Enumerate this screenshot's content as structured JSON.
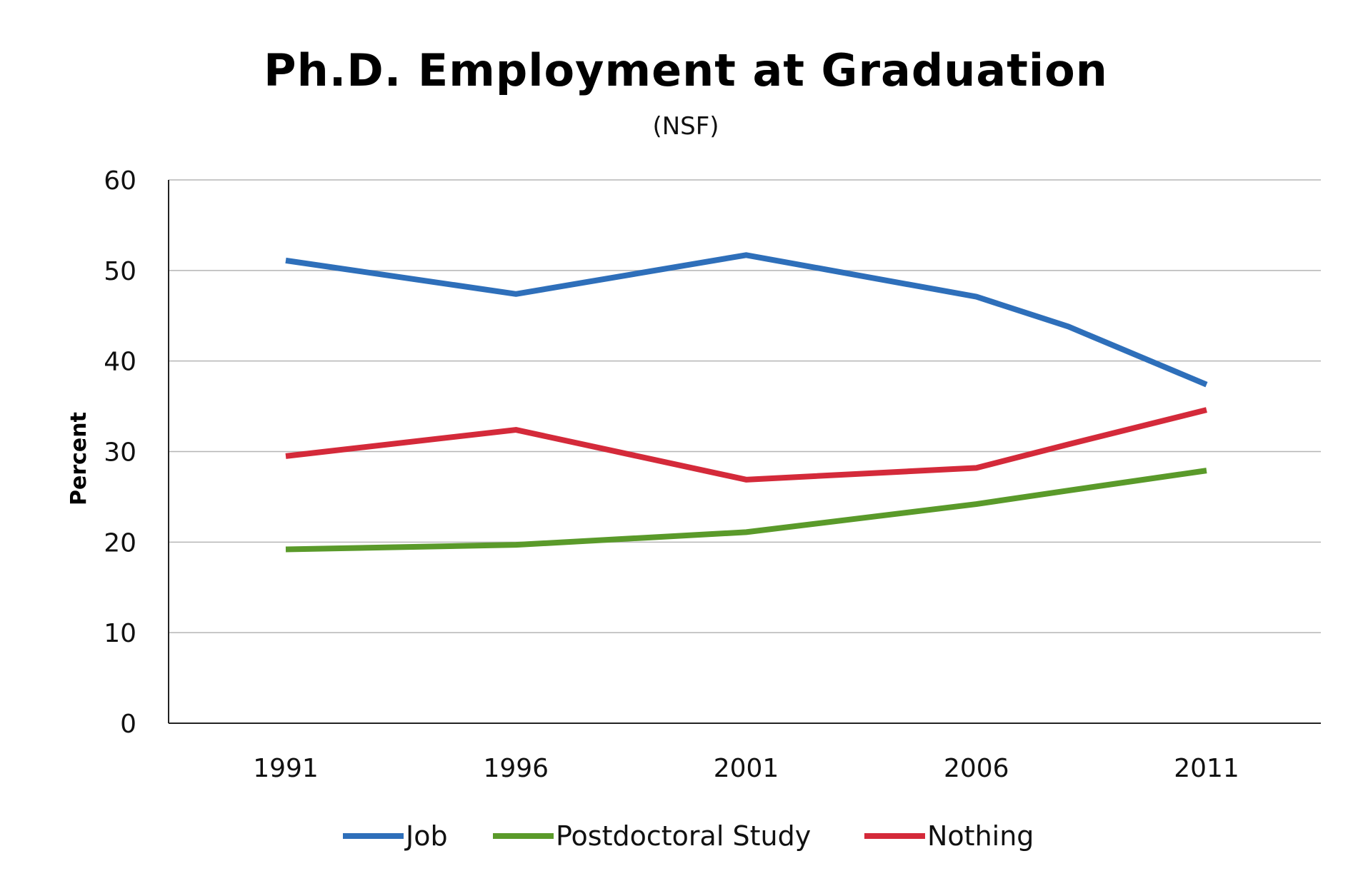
{
  "chart_data": {
    "type": "line",
    "title": "Ph.D. Employment  at Graduation",
    "subtitle": "(NSF)",
    "xlabel": "",
    "ylabel": "Percent",
    "ylim": [
      0,
      60
    ],
    "yticks": [
      "0",
      "10",
      "20",
      "30",
      "40",
      "50",
      "60"
    ],
    "categories": [
      "1991",
      "1996",
      "2001",
      "2006",
      "2011"
    ],
    "x": [
      1991,
      1996,
      2001,
      2006,
      2008,
      2011
    ],
    "grid": true,
    "legend_position": "bottom",
    "series": [
      {
        "name": "Job",
        "color": "#2e6fba",
        "values": [
          51.1,
          47.4,
          51.7,
          47.1,
          43.8,
          37.4
        ]
      },
      {
        "name": "Postdoctoral Study",
        "color": "#5a9a2a",
        "values": [
          19.2,
          19.7,
          21.1,
          24.2,
          25.7,
          27.9
        ]
      },
      {
        "name": "Nothing",
        "color": "#d42a3a",
        "values": [
          29.5,
          32.4,
          26.9,
          28.2,
          30.8,
          34.6
        ]
      }
    ]
  }
}
